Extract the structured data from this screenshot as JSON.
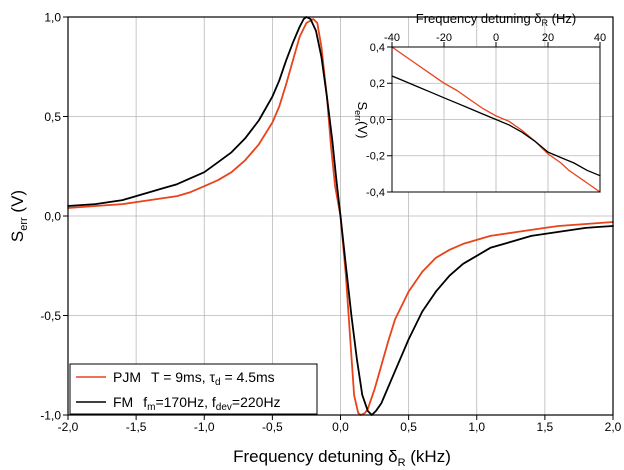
{
  "chart_data": [
    {
      "type": "line",
      "xlabel": "Frequency detuning δR (kHz)",
      "xlabel_parts": {
        "main": "Frequency detuning δ",
        "sub": "R",
        "unit": " (kHz)"
      },
      "ylabel": "Serr (V)",
      "ylabel_parts": {
        "main": "S",
        "sub": "err",
        "unit": " (V)"
      },
      "xlim": [
        -2.0,
        2.0
      ],
      "ylim": [
        -1.0,
        1.0
      ],
      "xticks": [
        -2.0,
        -1.5,
        -1.0,
        -0.5,
        0.0,
        0.5,
        1.0,
        1.5,
        2.0
      ],
      "xtick_labels": [
        "-2,0",
        "-1,5",
        "-1,0",
        "-0,5",
        "0,0",
        "0,5",
        "1,0",
        "1,5",
        "2,0"
      ],
      "yticks": [
        -1.0,
        -0.5,
        0.0,
        0.5,
        1.0
      ],
      "ytick_labels": [
        "-1,0",
        "-0,5",
        "0,0",
        "0,5",
        "1,0"
      ],
      "grid": true,
      "legend_position": "bottom-left",
      "series": [
        {
          "name": "PJM T = 9ms, τd = 4.5ms",
          "legend_parts": {
            "name": "PJM",
            "params": "T = 9ms, τ",
            "sub": "d",
            "tail": " = 4.5ms"
          },
          "color": "#e8431a",
          "x": [
            -2.0,
            -1.8,
            -1.6,
            -1.5,
            -1.4,
            -1.3,
            -1.2,
            -1.1,
            -1.0,
            -0.9,
            -0.8,
            -0.7,
            -0.6,
            -0.5,
            -0.45,
            -0.4,
            -0.35,
            -0.3,
            -0.25,
            -0.2,
            -0.17,
            -0.14,
            -0.1,
            -0.07,
            -0.04,
            0.0,
            0.04,
            0.07,
            0.1,
            0.13,
            0.15,
            0.18,
            0.2,
            0.22,
            0.25,
            0.3,
            0.35,
            0.4,
            0.5,
            0.6,
            0.7,
            0.8,
            0.9,
            1.0,
            1.1,
            1.2,
            1.3,
            1.4,
            1.5,
            1.6,
            1.7,
            1.8,
            1.9,
            2.0
          ],
          "y": [
            0.04,
            0.05,
            0.06,
            0.07,
            0.08,
            0.09,
            0.1,
            0.12,
            0.15,
            0.18,
            0.22,
            0.28,
            0.36,
            0.47,
            0.55,
            0.66,
            0.78,
            0.9,
            0.97,
            0.99,
            0.97,
            0.85,
            0.6,
            0.35,
            0.15,
            0.0,
            -0.3,
            -0.6,
            -0.9,
            -0.99,
            -1.0,
            -0.99,
            -0.97,
            -0.93,
            -0.87,
            -0.75,
            -0.63,
            -0.52,
            -0.38,
            -0.28,
            -0.21,
            -0.17,
            -0.14,
            -0.12,
            -0.1,
            -0.09,
            -0.08,
            -0.07,
            -0.06,
            -0.05,
            -0.045,
            -0.04,
            -0.035,
            -0.03
          ]
        },
        {
          "name": "FM fm=170Hz, fdev=220Hz",
          "legend_parts": {
            "name": "FM",
            "p1": "f",
            "p1sub": "m",
            "p1val": "=170Hz, ",
            "p2": "f",
            "p2sub": "dev",
            "p2val": "=220Hz"
          },
          "color": "#000000",
          "x": [
            -2.0,
            -1.8,
            -1.6,
            -1.5,
            -1.4,
            -1.3,
            -1.2,
            -1.1,
            -1.0,
            -0.9,
            -0.8,
            -0.7,
            -0.6,
            -0.5,
            -0.45,
            -0.4,
            -0.35,
            -0.3,
            -0.27,
            -0.25,
            -0.22,
            -0.18,
            -0.14,
            -0.1,
            -0.06,
            -0.03,
            0.0,
            0.04,
            0.08,
            0.12,
            0.16,
            0.2,
            0.23,
            0.26,
            0.3,
            0.35,
            0.4,
            0.5,
            0.6,
            0.7,
            0.8,
            0.9,
            1.0,
            1.1,
            1.2,
            1.3,
            1.4,
            1.5,
            1.6,
            1.7,
            1.8,
            1.9,
            2.0
          ],
          "y": [
            0.05,
            0.06,
            0.08,
            0.1,
            0.12,
            0.14,
            0.16,
            0.19,
            0.22,
            0.27,
            0.32,
            0.39,
            0.48,
            0.6,
            0.68,
            0.78,
            0.87,
            0.95,
            0.99,
            1.0,
            0.99,
            0.93,
            0.8,
            0.6,
            0.38,
            0.18,
            0.0,
            -0.25,
            -0.5,
            -0.72,
            -0.9,
            -0.98,
            -1.0,
            -0.98,
            -0.94,
            -0.86,
            -0.78,
            -0.62,
            -0.48,
            -0.38,
            -0.3,
            -0.24,
            -0.2,
            -0.16,
            -0.14,
            -0.12,
            -0.1,
            -0.09,
            -0.08,
            -0.07,
            -0.06,
            -0.055,
            -0.05
          ]
        }
      ]
    },
    {
      "type": "line",
      "inset": true,
      "xlabel": "Frequency detuning δR (Hz)",
      "xlabel_parts": {
        "main": "Frequency detuning δ",
        "sub": "R",
        "unit": " (Hz)"
      },
      "ylabel": "Serr(V)",
      "ylabel_parts": {
        "main": "S",
        "sub": "err",
        "unit": "(V)"
      },
      "xaxis_position": "top",
      "xlim": [
        -40,
        40
      ],
      "ylim": [
        -0.4,
        0.4
      ],
      "xticks": [
        -40,
        -20,
        0,
        20,
        40
      ],
      "xtick_labels": [
        "-40",
        "-20",
        "0",
        "20",
        "40"
      ],
      "yticks": [
        -0.4,
        -0.2,
        0.0,
        0.2,
        0.4
      ],
      "ytick_labels": [
        "-0,4",
        "-0,2",
        "0,0",
        "0,2",
        "0,4"
      ],
      "grid": true,
      "series": [
        {
          "name": "PJM",
          "color": "#e8431a",
          "x": [
            -40,
            -35,
            -30,
            -25,
            -20,
            -15,
            -10,
            -5,
            0,
            5,
            10,
            15,
            20,
            25,
            28,
            30,
            33,
            35,
            38,
            40
          ],
          "y": [
            0.4,
            0.35,
            0.3,
            0.25,
            0.2,
            0.16,
            0.11,
            0.06,
            0.02,
            -0.01,
            -0.06,
            -0.12,
            -0.19,
            -0.24,
            -0.28,
            -0.3,
            -0.33,
            -0.35,
            -0.38,
            -0.4
          ]
        },
        {
          "name": "FM",
          "color": "#000000",
          "x": [
            -40,
            -35,
            -30,
            -25,
            -20,
            -15,
            -10,
            -5,
            0,
            5,
            10,
            15,
            20,
            25,
            30,
            35,
            40
          ],
          "y": [
            0.24,
            0.21,
            0.18,
            0.15,
            0.12,
            0.09,
            0.06,
            0.03,
            0.0,
            -0.03,
            -0.07,
            -0.12,
            -0.18,
            -0.21,
            -0.24,
            -0.28,
            -0.31
          ]
        }
      ]
    }
  ]
}
